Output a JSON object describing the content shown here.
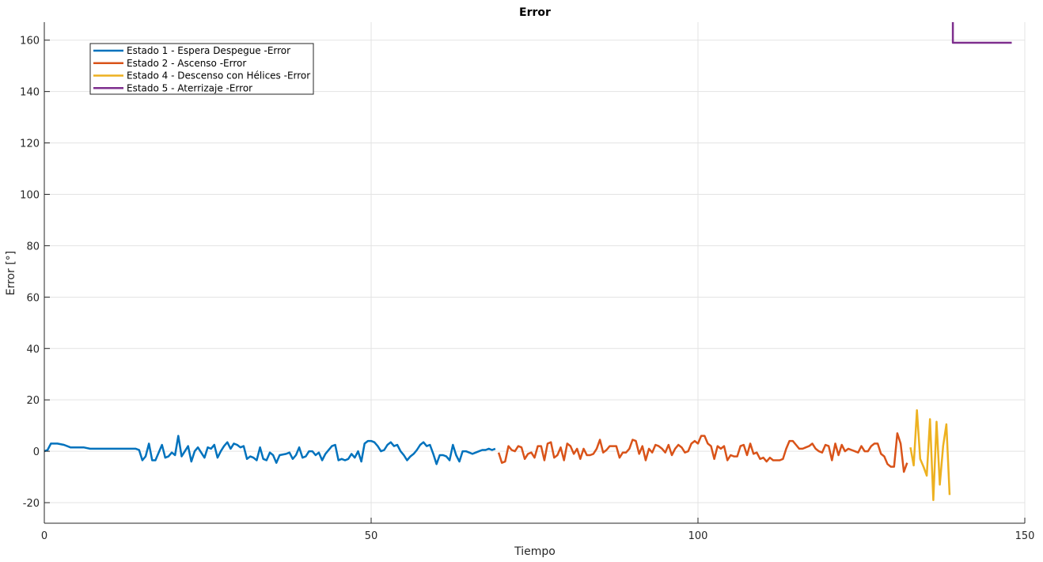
{
  "chart_data": {
    "type": "line",
    "title": "Error",
    "xlabel": "Tiempo",
    "ylabel": "Error [°]",
    "xlim": [
      0,
      150
    ],
    "ylim": [
      -28,
      167
    ],
    "xticks": [
      0,
      50,
      100,
      150
    ],
    "yticks": [
      -20,
      0,
      20,
      40,
      60,
      80,
      100,
      120,
      140,
      160
    ],
    "grid": true,
    "legend_position": "top-left",
    "series": [
      {
        "name": "Estado 1 - Espera Despegue -Error",
        "color": "#0072BD",
        "points": [
          [
            0,
            0
          ],
          [
            0.5,
            0.5
          ],
          [
            1,
            3
          ],
          [
            2,
            3
          ],
          [
            3,
            2.5
          ],
          [
            4,
            1.5
          ],
          [
            5,
            1.5
          ],
          [
            6,
            1.5
          ],
          [
            7,
            1
          ],
          [
            8,
            1
          ],
          [
            9,
            1
          ],
          [
            10,
            1
          ],
          [
            11,
            1
          ],
          [
            12,
            1
          ],
          [
            13,
            1
          ],
          [
            14,
            1
          ],
          [
            14.5,
            0.5
          ],
          [
            15,
            -3.5
          ],
          [
            15.5,
            -2
          ],
          [
            16,
            3
          ],
          [
            16.5,
            -3.5
          ],
          [
            17,
            -3.5
          ],
          [
            18,
            2.5
          ],
          [
            18.5,
            -2.5
          ],
          [
            19,
            -2
          ],
          [
            19.5,
            -0.5
          ],
          [
            20,
            -1.5
          ],
          [
            20.5,
            6
          ],
          [
            21,
            -2
          ],
          [
            22,
            2
          ],
          [
            22.5,
            -4
          ],
          [
            23,
            0
          ],
          [
            23.5,
            1.5
          ],
          [
            24,
            -0.5
          ],
          [
            24.5,
            -2.5
          ],
          [
            25,
            1.5
          ],
          [
            25.5,
            1
          ],
          [
            26,
            2.5
          ],
          [
            26.5,
            -2.5
          ],
          [
            27,
            0
          ],
          [
            27.5,
            2
          ],
          [
            28,
            3.5
          ],
          [
            28.5,
            1
          ],
          [
            29,
            3
          ],
          [
            29.5,
            2.5
          ],
          [
            30,
            1.5
          ],
          [
            30.5,
            2
          ],
          [
            31,
            -3
          ],
          [
            31.5,
            -2
          ],
          [
            32,
            -2.5
          ],
          [
            32.5,
            -3.5
          ],
          [
            33,
            1.5
          ],
          [
            33.5,
            -3
          ],
          [
            34,
            -3.5
          ],
          [
            34.5,
            -0.5
          ],
          [
            35,
            -1.5
          ],
          [
            35.5,
            -4.5
          ],
          [
            36,
            -1.5
          ],
          [
            37,
            -1
          ],
          [
            37.5,
            -0.5
          ],
          [
            38,
            -3
          ],
          [
            38.5,
            -1.5
          ],
          [
            39,
            1.5
          ],
          [
            39.5,
            -2.5
          ],
          [
            40,
            -2
          ],
          [
            40.5,
            0
          ],
          [
            41,
            0
          ],
          [
            41.5,
            -1.5
          ],
          [
            42,
            -0.5
          ],
          [
            42.5,
            -3.5
          ],
          [
            43,
            -1
          ],
          [
            44,
            2
          ],
          [
            44.5,
            2.5
          ],
          [
            45,
            -3.5
          ],
          [
            45.5,
            -3
          ],
          [
            46,
            -3.5
          ],
          [
            46.5,
            -3
          ],
          [
            47,
            -1
          ],
          [
            47.5,
            -2.5
          ],
          [
            48,
            0
          ],
          [
            48.5,
            -4
          ],
          [
            49,
            3
          ],
          [
            49.5,
            4
          ],
          [
            50,
            4
          ],
          [
            50.5,
            3.5
          ],
          [
            51,
            2
          ],
          [
            51.5,
            0
          ],
          [
            52,
            0.5
          ],
          [
            52.5,
            2.5
          ],
          [
            53,
            3.5
          ],
          [
            53.5,
            2
          ],
          [
            54,
            2.5
          ],
          [
            54.5,
            0
          ],
          [
            55,
            -1.5
          ],
          [
            55.5,
            -3.5
          ],
          [
            56,
            -2
          ],
          [
            56.5,
            -1
          ],
          [
            57,
            0.5
          ],
          [
            57.5,
            2.5
          ],
          [
            58,
            3.5
          ],
          [
            58.5,
            2
          ],
          [
            59,
            2.5
          ],
          [
            59.5,
            -1
          ],
          [
            60,
            -5
          ],
          [
            60.5,
            -1.5
          ],
          [
            61,
            -1.5
          ],
          [
            61.5,
            -2
          ],
          [
            62,
            -3.5
          ],
          [
            62.5,
            2.5
          ],
          [
            63,
            -1.5
          ],
          [
            63.5,
            -4
          ],
          [
            64,
            0
          ],
          [
            64.5,
            0
          ],
          [
            65,
            -0.5
          ],
          [
            65.5,
            -1
          ],
          [
            66,
            -0.5
          ],
          [
            66.5,
            0
          ],
          [
            67,
            0.5
          ],
          [
            67.5,
            0.5
          ],
          [
            68,
            1
          ],
          [
            68.5,
            0.5
          ],
          [
            69,
            1
          ]
        ]
      },
      {
        "name": "Estado 2 - Ascenso -Error",
        "color": "#D95319",
        "points": [
          [
            69.5,
            -0.5
          ],
          [
            70,
            -4.5
          ],
          [
            70.5,
            -4
          ],
          [
            71,
            2
          ],
          [
            71.5,
            0.5
          ],
          [
            72,
            0
          ],
          [
            72.5,
            2
          ],
          [
            73,
            1.5
          ],
          [
            73.5,
            -3
          ],
          [
            74,
            -1
          ],
          [
            74.5,
            -0.5
          ],
          [
            75,
            -2.5
          ],
          [
            75.5,
            2
          ],
          [
            76,
            2
          ],
          [
            76.5,
            -3.5
          ],
          [
            77,
            3
          ],
          [
            77.5,
            3.5
          ],
          [
            78,
            -2.5
          ],
          [
            78.5,
            -1.5
          ],
          [
            79,
            1.5
          ],
          [
            79.5,
            -3.5
          ],
          [
            80,
            3
          ],
          [
            80.5,
            2
          ],
          [
            81,
            -1
          ],
          [
            81.5,
            1
          ],
          [
            82,
            -3
          ],
          [
            82.5,
            1
          ],
          [
            83,
            -1.5
          ],
          [
            83.5,
            -1.5
          ],
          [
            84,
            -1
          ],
          [
            84.5,
            1
          ],
          [
            85,
            4.5
          ],
          [
            85.5,
            -0.5
          ],
          [
            86,
            0.5
          ],
          [
            86.5,
            2
          ],
          [
            87,
            2
          ],
          [
            87.5,
            2
          ],
          [
            88,
            -2.5
          ],
          [
            88.5,
            -0.5
          ],
          [
            89,
            -0.5
          ],
          [
            89.5,
            1
          ],
          [
            90,
            4.5
          ],
          [
            90.5,
            4
          ],
          [
            91,
            -1
          ],
          [
            91.5,
            2
          ],
          [
            92,
            -3.5
          ],
          [
            92.5,
            1
          ],
          [
            93,
            -0.5
          ],
          [
            93.5,
            2.5
          ],
          [
            94,
            2
          ],
          [
            94.5,
            1
          ],
          [
            95,
            -0.5
          ],
          [
            95.5,
            2.5
          ],
          [
            96,
            -1.5
          ],
          [
            96.5,
            1
          ],
          [
            97,
            2.5
          ],
          [
            97.5,
            1.5
          ],
          [
            98,
            -0.5
          ],
          [
            98.5,
            0
          ],
          [
            99,
            3
          ],
          [
            99.5,
            4
          ],
          [
            100,
            3
          ],
          [
            100.5,
            6
          ],
          [
            101,
            6
          ],
          [
            101.5,
            3
          ],
          [
            102,
            2
          ],
          [
            102.5,
            -3
          ],
          [
            103,
            2
          ],
          [
            103.5,
            1
          ],
          [
            104,
            2
          ],
          [
            104.5,
            -3.5
          ],
          [
            105,
            -1.5
          ],
          [
            105.5,
            -2
          ],
          [
            106,
            -2
          ],
          [
            106.5,
            2
          ],
          [
            107,
            2.5
          ],
          [
            107.5,
            -1.5
          ],
          [
            108,
            3
          ],
          [
            108.5,
            -1
          ],
          [
            109,
            -0.5
          ],
          [
            109.5,
            -3
          ],
          [
            110,
            -2.5
          ],
          [
            110.5,
            -4
          ],
          [
            111,
            -2.5
          ],
          [
            111.5,
            -3.5
          ],
          [
            112,
            -3.5
          ],
          [
            112.5,
            -3.5
          ],
          [
            113,
            -3
          ],
          [
            113.5,
            1
          ],
          [
            114,
            4
          ],
          [
            114.5,
            4
          ],
          [
            115,
            2.5
          ],
          [
            115.5,
            1
          ],
          [
            116,
            1
          ],
          [
            116.5,
            1.5
          ],
          [
            117,
            2
          ],
          [
            117.5,
            3
          ],
          [
            118,
            1
          ],
          [
            118.5,
            0
          ],
          [
            119,
            -0.5
          ],
          [
            119.5,
            2.5
          ],
          [
            120,
            2
          ],
          [
            120.5,
            -3.5
          ],
          [
            121,
            3
          ],
          [
            121.5,
            -1.5
          ],
          [
            122,
            2.5
          ],
          [
            122.5,
            0
          ],
          [
            123,
            1
          ],
          [
            123.5,
            0.5
          ],
          [
            124,
            0
          ],
          [
            124.5,
            -0.5
          ],
          [
            125,
            2
          ],
          [
            125.5,
            0
          ],
          [
            126,
            0
          ],
          [
            126.5,
            2
          ],
          [
            127,
            3
          ],
          [
            127.5,
            3
          ],
          [
            128,
            -1
          ],
          [
            128.5,
            -2
          ],
          [
            129,
            -5
          ],
          [
            129.5,
            -6
          ],
          [
            130,
            -6
          ],
          [
            130.5,
            7
          ],
          [
            131,
            3
          ],
          [
            131.5,
            -8
          ],
          [
            132,
            -4.5
          ]
        ]
      },
      {
        "name": "Estado 4 - Descenso con Hélices -Error",
        "color": "#EDB120",
        "points": [
          [
            132.5,
            1.5
          ],
          [
            133,
            -5.5
          ],
          [
            133.5,
            16
          ],
          [
            134,
            -3
          ],
          [
            134.5,
            -6
          ],
          [
            135,
            -9.5
          ],
          [
            135.5,
            12.5
          ],
          [
            136,
            -19
          ],
          [
            136.5,
            11.5
          ],
          [
            137,
            -13
          ],
          [
            137.5,
            2
          ],
          [
            138,
            10.5
          ],
          [
            138.5,
            -17
          ]
        ]
      },
      {
        "name": "Estado 5 - Aterrizaje -Error",
        "color": "#7E2F8E",
        "points": [
          [
            139,
            167
          ],
          [
            139,
            159
          ],
          [
            148,
            159
          ]
        ]
      }
    ]
  }
}
